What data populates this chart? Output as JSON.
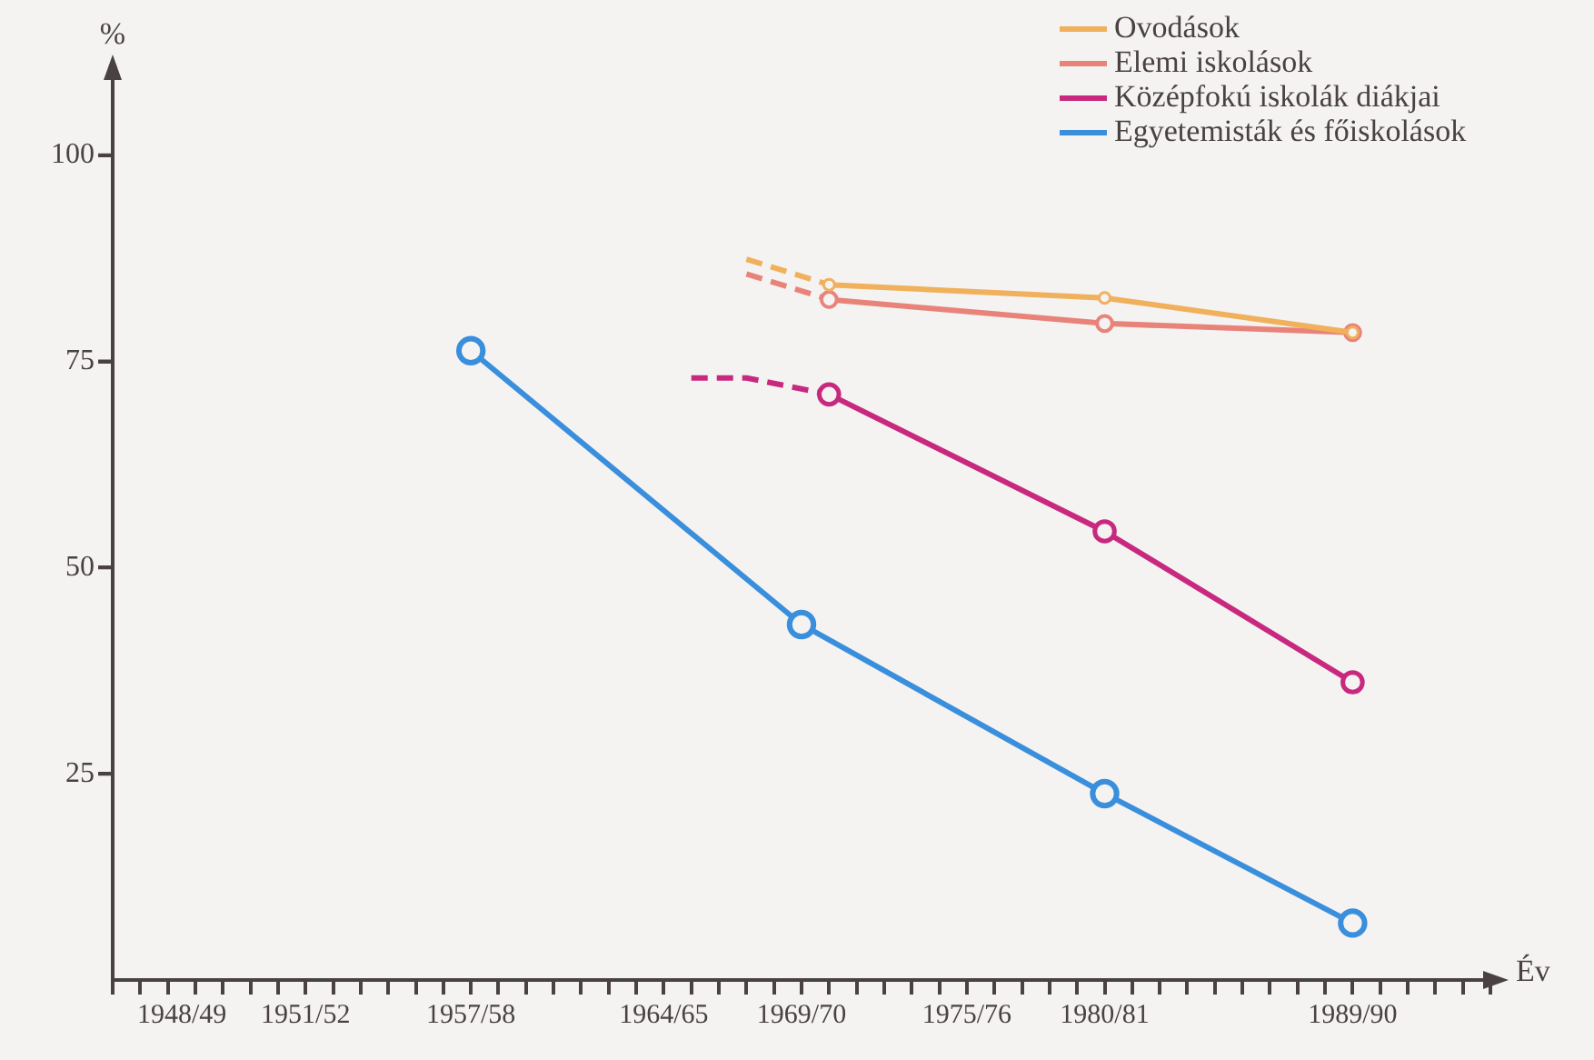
{
  "chart_data": {
    "type": "line",
    "xlabel": "Év",
    "ylabel": "%",
    "categories": [
      null,
      null,
      null,
      null,
      "1948/49",
      null,
      null,
      "1951/52",
      null,
      null,
      null,
      null,
      null,
      "1957/58",
      null,
      null,
      null,
      null,
      null,
      null,
      "1964/65",
      null,
      null,
      null,
      null,
      "1969/70",
      null,
      null,
      null,
      null,
      null,
      "1975/76",
      null,
      null,
      null,
      null,
      "1980/81",
      null,
      null,
      null,
      null,
      null,
      null,
      null,
      null,
      "1989/90",
      null,
      null,
      null,
      null,
      null
    ],
    "ylim": [
      0,
      110
    ],
    "yticks": [
      25,
      50,
      75,
      100
    ],
    "grid": false,
    "legend": "top right",
    "marker": "circle",
    "line_style": "solid",
    "series": [
      {
        "name": "Ovodások",
        "color": "#f0b05c",
        "values": [
          null,
          null,
          null,
          null,
          null,
          null,
          null,
          null,
          null,
          null,
          null,
          null,
          null,
          null,
          null,
          null,
          null,
          null,
          null,
          null,
          null,
          null,
          null,
          null,
          null,
          null,
          84.3,
          null,
          null,
          null,
          null,
          null,
          null,
          null,
          null,
          null,
          82.7,
          null,
          null,
          null,
          null,
          null,
          null,
          null,
          null,
          78.5,
          null,
          null,
          null,
          null,
          null
        ]
      },
      {
        "name": "Elemi iskolások",
        "color": "#e8837a",
        "values": [
          null,
          null,
          null,
          null,
          null,
          null,
          null,
          null,
          null,
          null,
          null,
          null,
          null,
          null,
          null,
          null,
          null,
          null,
          null,
          null,
          null,
          null,
          null,
          null,
          null,
          null,
          82.5,
          null,
          null,
          null,
          null,
          null,
          null,
          null,
          null,
          null,
          79.6,
          null,
          null,
          null,
          null,
          null,
          null,
          null,
          null,
          78.5,
          null,
          null,
          null,
          null,
          null
        ]
      },
      {
        "name": "Középfokú iskolák diákjai",
        "color": "#c8297f",
        "values": [
          null,
          null,
          null,
          null,
          null,
          null,
          null,
          null,
          null,
          null,
          null,
          null,
          null,
          null,
          null,
          null,
          null,
          null,
          null,
          null,
          null,
          null,
          null,
          null,
          null,
          null,
          71.0,
          null,
          null,
          null,
          null,
          null,
          null,
          null,
          null,
          null,
          54.4,
          null,
          null,
          null,
          null,
          null,
          null,
          null,
          null,
          36.1,
          null,
          null,
          null,
          null,
          null
        ]
      },
      {
        "name": "Egyetemisták és főiskolások",
        "color": "#3a8fdc",
        "values": [
          null,
          null,
          null,
          null,
          null,
          null,
          null,
          null,
          null,
          null,
          null,
          null,
          null,
          76.3,
          null,
          null,
          null,
          null,
          null,
          null,
          null,
          null,
          null,
          null,
          null,
          43.1,
          null,
          null,
          null,
          null,
          null,
          null,
          null,
          null,
          null,
          null,
          22.6,
          null,
          null,
          null,
          null,
          null,
          null,
          null,
          null,
          6.9,
          null,
          null,
          null,
          null,
          null
        ]
      },
      {
        "color": "#f0b05c",
        "line_style": "dashed",
        "marker": "none",
        "values": [
          null,
          null,
          null,
          null,
          null,
          null,
          null,
          null,
          null,
          null,
          null,
          null,
          null,
          null,
          null,
          null,
          null,
          null,
          null,
          null,
          null,
          null,
          null,
          87.4,
          null,
          null,
          84.3,
          null,
          null,
          null,
          null,
          null,
          null,
          null,
          null,
          null,
          null,
          null,
          null,
          null,
          null,
          null,
          null,
          null,
          null,
          null,
          null,
          null,
          null,
          null,
          null
        ]
      },
      {
        "color": "#e8837a",
        "line_style": "dashed",
        "marker": "none",
        "values": [
          null,
          null,
          null,
          null,
          null,
          null,
          null,
          null,
          null,
          null,
          null,
          null,
          null,
          null,
          null,
          null,
          null,
          null,
          null,
          null,
          null,
          null,
          null,
          85.6,
          null,
          null,
          82.5,
          null,
          null,
          null,
          null,
          null,
          null,
          null,
          null,
          null,
          null,
          null,
          null,
          null,
          null,
          null,
          null,
          null,
          null,
          null,
          null,
          null,
          null,
          null,
          null
        ]
      },
      {
        "color": "#c8297f",
        "line_style": "dashed",
        "marker": "none",
        "values": [
          null,
          null,
          null,
          null,
          null,
          null,
          null,
          null,
          null,
          null,
          null,
          null,
          null,
          null,
          null,
          null,
          null,
          null,
          null,
          null,
          null,
          73.0,
          null,
          73.0,
          null,
          null,
          71.0,
          null,
          null,
          null,
          null,
          null,
          null,
          null,
          null,
          null,
          null,
          null,
          null,
          null,
          null,
          null,
          null,
          null,
          null,
          null,
          null,
          null,
          null,
          null,
          null
        ]
      }
    ]
  }
}
